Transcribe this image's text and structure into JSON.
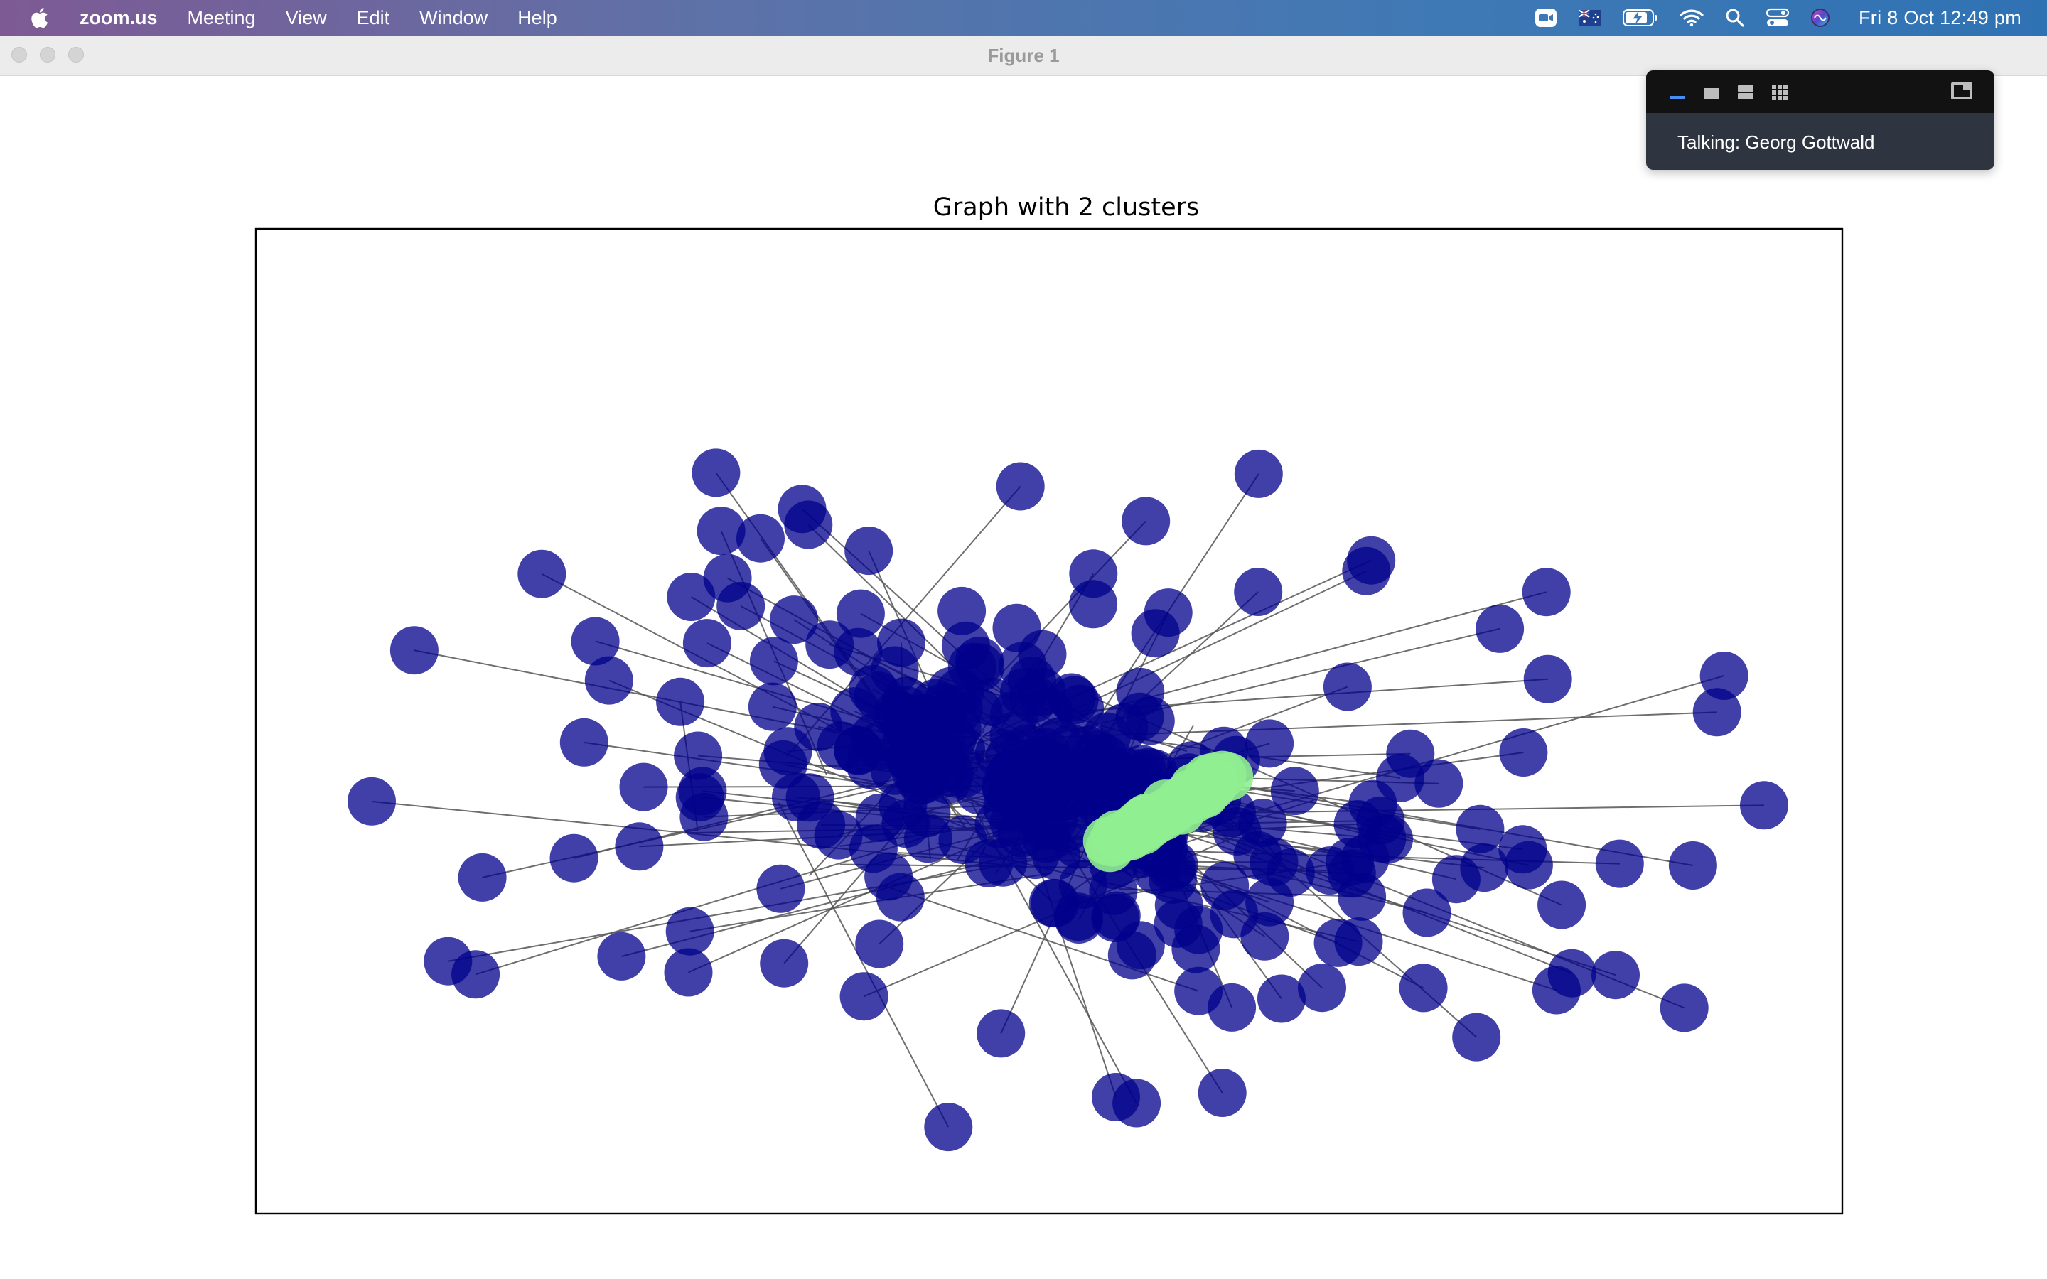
{
  "menubar": {
    "app_name": "zoom.us",
    "menus": [
      "Meeting",
      "View",
      "Edit",
      "Window",
      "Help"
    ],
    "tray_icons": [
      "zoom-camera-icon",
      "australia-flag-icon",
      "battery-charging-icon",
      "wifi-icon",
      "spotlight-search-icon",
      "control-center-icon",
      "siri-icon"
    ],
    "clock": "Fri 8 Oct  12:49 pm"
  },
  "window": {
    "title": "Figure 1"
  },
  "zoom_panel": {
    "talking": "Talking: Georg Gottwald",
    "view_buttons": [
      "minimize-view-icon",
      "speaker-view-icon",
      "strip-view-icon",
      "gallery-view-icon"
    ],
    "expand_icon": "expand-window-icon"
  },
  "chart_data": {
    "type": "network-graph",
    "title": "Graph with 2 clusters",
    "clusters": [
      {
        "name": "",
        "color": "#00008b",
        "opacity": 0.75,
        "nodes": 300
      },
      {
        "name": "",
        "color": "#90ee90",
        "opacity": 0.9,
        "nodes": 40
      }
    ],
    "edge_color": "#555555",
    "axes": "off",
    "frame": true
  }
}
